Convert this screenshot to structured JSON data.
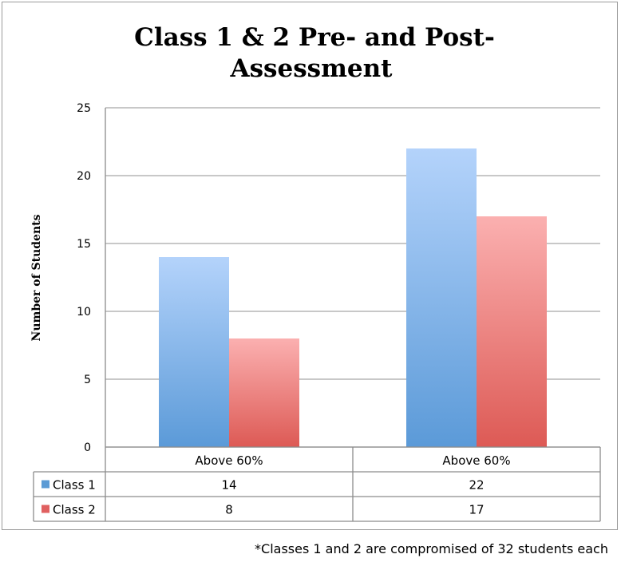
{
  "chart_data": {
    "type": "bar",
    "title_lines": [
      "Class 1 & 2 Pre- and Post-",
      "Assessment"
    ],
    "ylabel": "Number of Students",
    "xlabel": "",
    "categories": [
      "Above 60%",
      "Above 60%"
    ],
    "series": [
      {
        "name": "Class 1",
        "values": [
          14,
          22
        ],
        "color": "#5b9bd5"
      },
      {
        "name": "Class 2",
        "values": [
          8,
          17
        ],
        "color": "#e06060"
      }
    ],
    "ylim": [
      0,
      25
    ],
    "yticks": [
      0,
      5,
      10,
      15,
      20,
      25
    ],
    "grid": true,
    "legend_placement": "data-table"
  },
  "footnote": "*Classes 1 and 2 are compromised of 32 students each"
}
